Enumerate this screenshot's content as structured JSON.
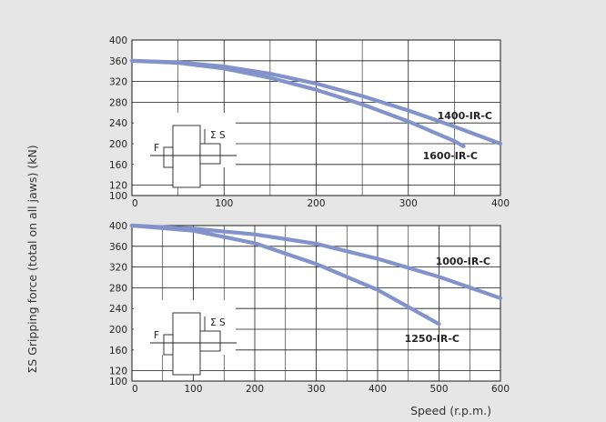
{
  "figure": {
    "ylabel": "ΣS Gripping force (total on all jaws) (kN)",
    "xlabel": "Speed (r.p.m.)"
  },
  "diagram": {
    "force_symbol": "F",
    "sum_symbol": "Σ S"
  },
  "colors": {
    "curve": "#8293cb",
    "grid": "#1a1a1a",
    "background": "#e6e6e6",
    "plot": "#ffffff"
  },
  "chart_data": [
    {
      "type": "line",
      "xlim": [
        0,
        400
      ],
      "ylim": [
        100,
        400
      ],
      "x_ticks": [
        0,
        100,
        200,
        300,
        400
      ],
      "y_ticks": [
        100,
        120,
        160,
        200,
        240,
        280,
        320,
        360,
        400
      ],
      "grid": true,
      "series": [
        {
          "name": "1400-IR-C",
          "x": [
            0,
            50,
            100,
            150,
            200,
            250,
            300,
            350,
            400
          ],
          "y": [
            360,
            357,
            349,
            335,
            316,
            292,
            264,
            233,
            200
          ]
        },
        {
          "name": "1600-IR-C",
          "x": [
            0,
            50,
            100,
            150,
            200,
            250,
            300,
            350,
            360
          ],
          "y": [
            360,
            356,
            345,
            327,
            304,
            276,
            243,
            205,
            195
          ]
        }
      ]
    },
    {
      "type": "line",
      "xlim": [
        0,
        600
      ],
      "ylim": [
        100,
        400
      ],
      "x_ticks": [
        0,
        100,
        200,
        300,
        400,
        500,
        600
      ],
      "y_ticks": [
        100,
        120,
        160,
        200,
        240,
        280,
        320,
        360,
        400
      ],
      "grid": true,
      "xlabel": "Speed (r.p.m.)",
      "series": [
        {
          "name": "1000-IR-C",
          "x": [
            0,
            100,
            200,
            300,
            400,
            500,
            600
          ],
          "y": [
            400,
            394,
            383,
            365,
            336,
            301,
            260
          ]
        },
        {
          "name": "1250-IR-C",
          "x": [
            0,
            100,
            200,
            300,
            400,
            500
          ],
          "y": [
            400,
            390,
            366,
            326,
            276,
            210
          ]
        }
      ]
    }
  ]
}
